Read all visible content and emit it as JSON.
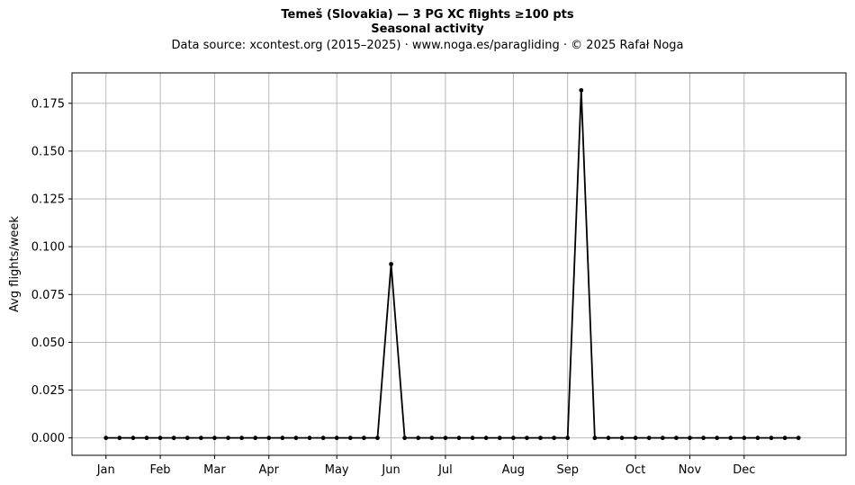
{
  "chart_data": {
    "type": "line",
    "title": "Temeš (Slovakia)  —  3 PG XC flights ≥100 pts",
    "subtitle": "Seasonal activity",
    "source_note": "Data source: xcontest.org (2015–2025)  ·  www.noga.es/paragliding  ·  © 2025 Rafał Noga",
    "xlabel": "",
    "ylabel": "Avg flights/week",
    "x": [
      1,
      2,
      3,
      4,
      5,
      6,
      7,
      8,
      9,
      10,
      11,
      12,
      13,
      14,
      15,
      16,
      17,
      18,
      19,
      20,
      21,
      22,
      23,
      24,
      25,
      26,
      27,
      28,
      29,
      30,
      31,
      32,
      33,
      34,
      35,
      36,
      37,
      38,
      39,
      40,
      41,
      42,
      43,
      44,
      45,
      46,
      47,
      48,
      49,
      50,
      51,
      52
    ],
    "values": [
      0,
      0,
      0,
      0,
      0,
      0,
      0,
      0,
      0,
      0,
      0,
      0,
      0,
      0,
      0,
      0,
      0,
      0,
      0,
      0,
      0,
      0.0909,
      0,
      0,
      0,
      0,
      0,
      0,
      0,
      0,
      0,
      0,
      0,
      0,
      0,
      0.1818,
      0,
      0,
      0,
      0,
      0,
      0,
      0,
      0,
      0,
      0,
      0,
      0,
      0,
      0,
      0,
      0
    ],
    "xlim": [
      -1.5,
      55.5
    ],
    "ylim": [
      -0.0091,
      0.1909
    ],
    "x_ticks": [
      {
        "value": 1,
        "label": "Jan"
      },
      {
        "value": 5,
        "label": "Feb"
      },
      {
        "value": 9,
        "label": "Mar"
      },
      {
        "value": 13,
        "label": "Apr"
      },
      {
        "value": 18,
        "label": "May"
      },
      {
        "value": 22,
        "label": "Jun"
      },
      {
        "value": 26,
        "label": "Jul"
      },
      {
        "value": 31,
        "label": "Aug"
      },
      {
        "value": 35,
        "label": "Sep"
      },
      {
        "value": 40,
        "label": "Oct"
      },
      {
        "value": 44,
        "label": "Nov"
      },
      {
        "value": 48,
        "label": "Dec"
      }
    ],
    "y_ticks": [
      {
        "value": 0,
        "label": "0.000"
      },
      {
        "value": 0.025,
        "label": "0.025"
      },
      {
        "value": 0.05,
        "label": "0.050"
      },
      {
        "value": 0.075,
        "label": "0.075"
      },
      {
        "value": 0.1,
        "label": "0.100"
      },
      {
        "value": 0.125,
        "label": "0.125"
      },
      {
        "value": 0.15,
        "label": "0.150"
      },
      {
        "value": 0.175,
        "label": "0.175"
      }
    ],
    "grid": true,
    "legend": "none",
    "line_color": "#000000",
    "marker_color": "#000000",
    "grid_color": "#b0b0b0"
  }
}
